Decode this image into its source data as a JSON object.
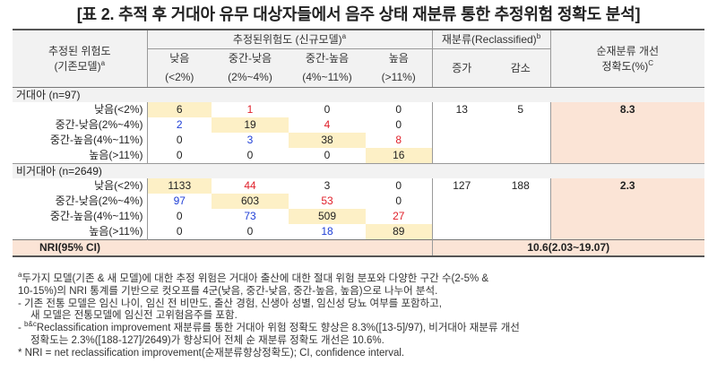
{
  "title": "[표 2. 추적 후 거대아 유무 대상자들에서 음주 상태 재분류 통한 추정위험 정확도 분석]",
  "header": {
    "row_head_line1": "추정된 위험도",
    "row_head_line2": "(기존모델)",
    "row_head_sup": "a",
    "new_model": "추정된위험도 (신규모델)",
    "new_model_sup": "a",
    "reclassified": "재분류(Reclassified)",
    "reclassified_sup": "b",
    "net_line1": "순재분류 개선",
    "net_line2": "정확도(%)",
    "net_sup": "C",
    "cat_names": [
      "낮음",
      "중간-낮음",
      "중간-높음",
      "높음"
    ],
    "cat_ranges": [
      "(<2%)",
      "(2%~4%)",
      "(4%~11%)",
      "(>11%)"
    ],
    "increase": "증가",
    "decrease": "감소"
  },
  "groups": [
    {
      "label": "거대아  (n=97)",
      "increase": "13",
      "decrease": "5",
      "nri": "8.3",
      "rows": [
        {
          "label": "낮음(<2%)",
          "cells": [
            "6",
            "1",
            "0",
            "0"
          ]
        },
        {
          "label": "중간-낮음(2%~4%)",
          "cells": [
            "2",
            "19",
            "4",
            "0"
          ]
        },
        {
          "label": "중간-높음(4%~11%)",
          "cells": [
            "0",
            "3",
            "38",
            "8"
          ]
        },
        {
          "label": "높음(>11%)",
          "cells": [
            "0",
            "0",
            "0",
            "16"
          ]
        }
      ]
    },
    {
      "label": "비거대아  (n=2649)",
      "increase": "127",
      "decrease": "188",
      "nri": "2.3",
      "rows": [
        {
          "label": "낮음(<2%)",
          "cells": [
            "1133",
            "44",
            "3",
            "0"
          ]
        },
        {
          "label": "중간-낮음(2%~4%)",
          "cells": [
            "97",
            "603",
            "53",
            "0"
          ]
        },
        {
          "label": "중간-높음(4%~11%)",
          "cells": [
            "0",
            "73",
            "509",
            "27"
          ]
        },
        {
          "label": "높음(>11%)",
          "cells": [
            "0",
            "0",
            "18",
            "89"
          ]
        }
      ]
    }
  ],
  "nri_row": {
    "label": "NRI(95% CI)",
    "value": "10.6(2.03~19.07)"
  },
  "notes": {
    "n1_sup": "a",
    "n1a": "두가지 모델(기존 & 새 모델)에 대한 추정 위험은 거대아 출산에 대한 절대 위험 분포와 다양한 구간 수(2-5% &",
    "n1b": "10-15%)의 NRI 통계를 기반으로 컷오프를 4군(낮음, 중간-낮음, 중간-높음, 높음)으로 나누어 분석.",
    "n2a": "- 기존 전통 모델은 임신 나이, 임신 전 비만도, 출산 경험, 신생아 성별, 임신성 당뇨 여부를 포함하고,",
    "n2b": "새 모델은 전통모델에 임신전 고위험음주를 포함.",
    "n3_sup": "b&c",
    "n3a": "Reclassification improvement 재분류를 통한 거대아 위험 정확도 향상은 8.3%([13-5]/97), 비거대아 재분류 개선",
    "n3b": "정확도는 2.3%([188-127]/2649)가 향상되어 전체 순 재분류 정확도 개선은 10.6%.",
    "n4": "* NRI = net reclassification improvement(순재분류향상정확도); CI, confidence interval."
  },
  "colors": {
    "peach": "#fbe4d6",
    "yellow": "#fdf0c6",
    "red": "#e0202a",
    "blue": "#1f3fd6",
    "header_gray": "#f2f2f2"
  }
}
